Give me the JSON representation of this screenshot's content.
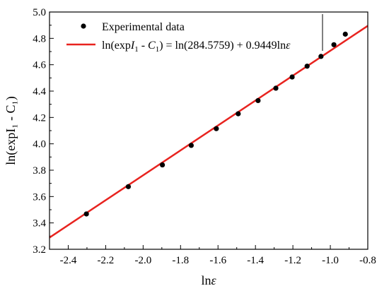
{
  "chart_data": {
    "type": "scatter",
    "x_range": [
      -2.5,
      -0.8
    ],
    "y_range": [
      3.2,
      5.0
    ],
    "x_ticks": [
      "-2.4",
      "-2.2",
      "-2.0",
      "-1.8",
      "-1.6",
      "-1.4",
      "-1.2",
      "-1.0",
      "-0.8"
    ],
    "y_ticks": [
      "3.2",
      "3.4",
      "3.6",
      "3.8",
      "4.0",
      "4.2",
      "4.4",
      "4.6",
      "4.8",
      "5.0"
    ],
    "xlabel": {
      "pre": "ln",
      "italic": "ε"
    },
    "ylabel": "ln(expI₁ - C₁)",
    "series": [
      {
        "name": "Experimental data",
        "type": "scatter",
        "color": "#000000",
        "x": [
          -2.303,
          -2.079,
          -1.897,
          -1.743,
          -1.609,
          -1.492,
          -1.386,
          -1.291,
          -1.204,
          -1.124,
          -1.05,
          -0.981,
          -0.92
        ],
        "y": [
          3.468,
          3.675,
          3.84,
          3.988,
          4.115,
          4.228,
          4.328,
          4.422,
          4.507,
          4.589,
          4.663,
          4.752,
          4.832
        ]
      },
      {
        "name": "ln(expI₁ - C₁) = ln(284.5759) + 0.9449lnε",
        "type": "line",
        "color": "#e8231f",
        "intercept": 5.6511,
        "slope": 0.9449,
        "x": [
          -2.5,
          -0.8
        ]
      }
    ],
    "legend": {
      "position": "top-left",
      "scatter_label": "Experimental data",
      "fit_label": {
        "a": "ln(exp",
        "b": "I",
        "c": "1",
        "d": " - ",
        "e": "C",
        "f": "1",
        "g": ") = ln(284.5759) + 0.9449ln",
        "h": "ε"
      }
    }
  }
}
